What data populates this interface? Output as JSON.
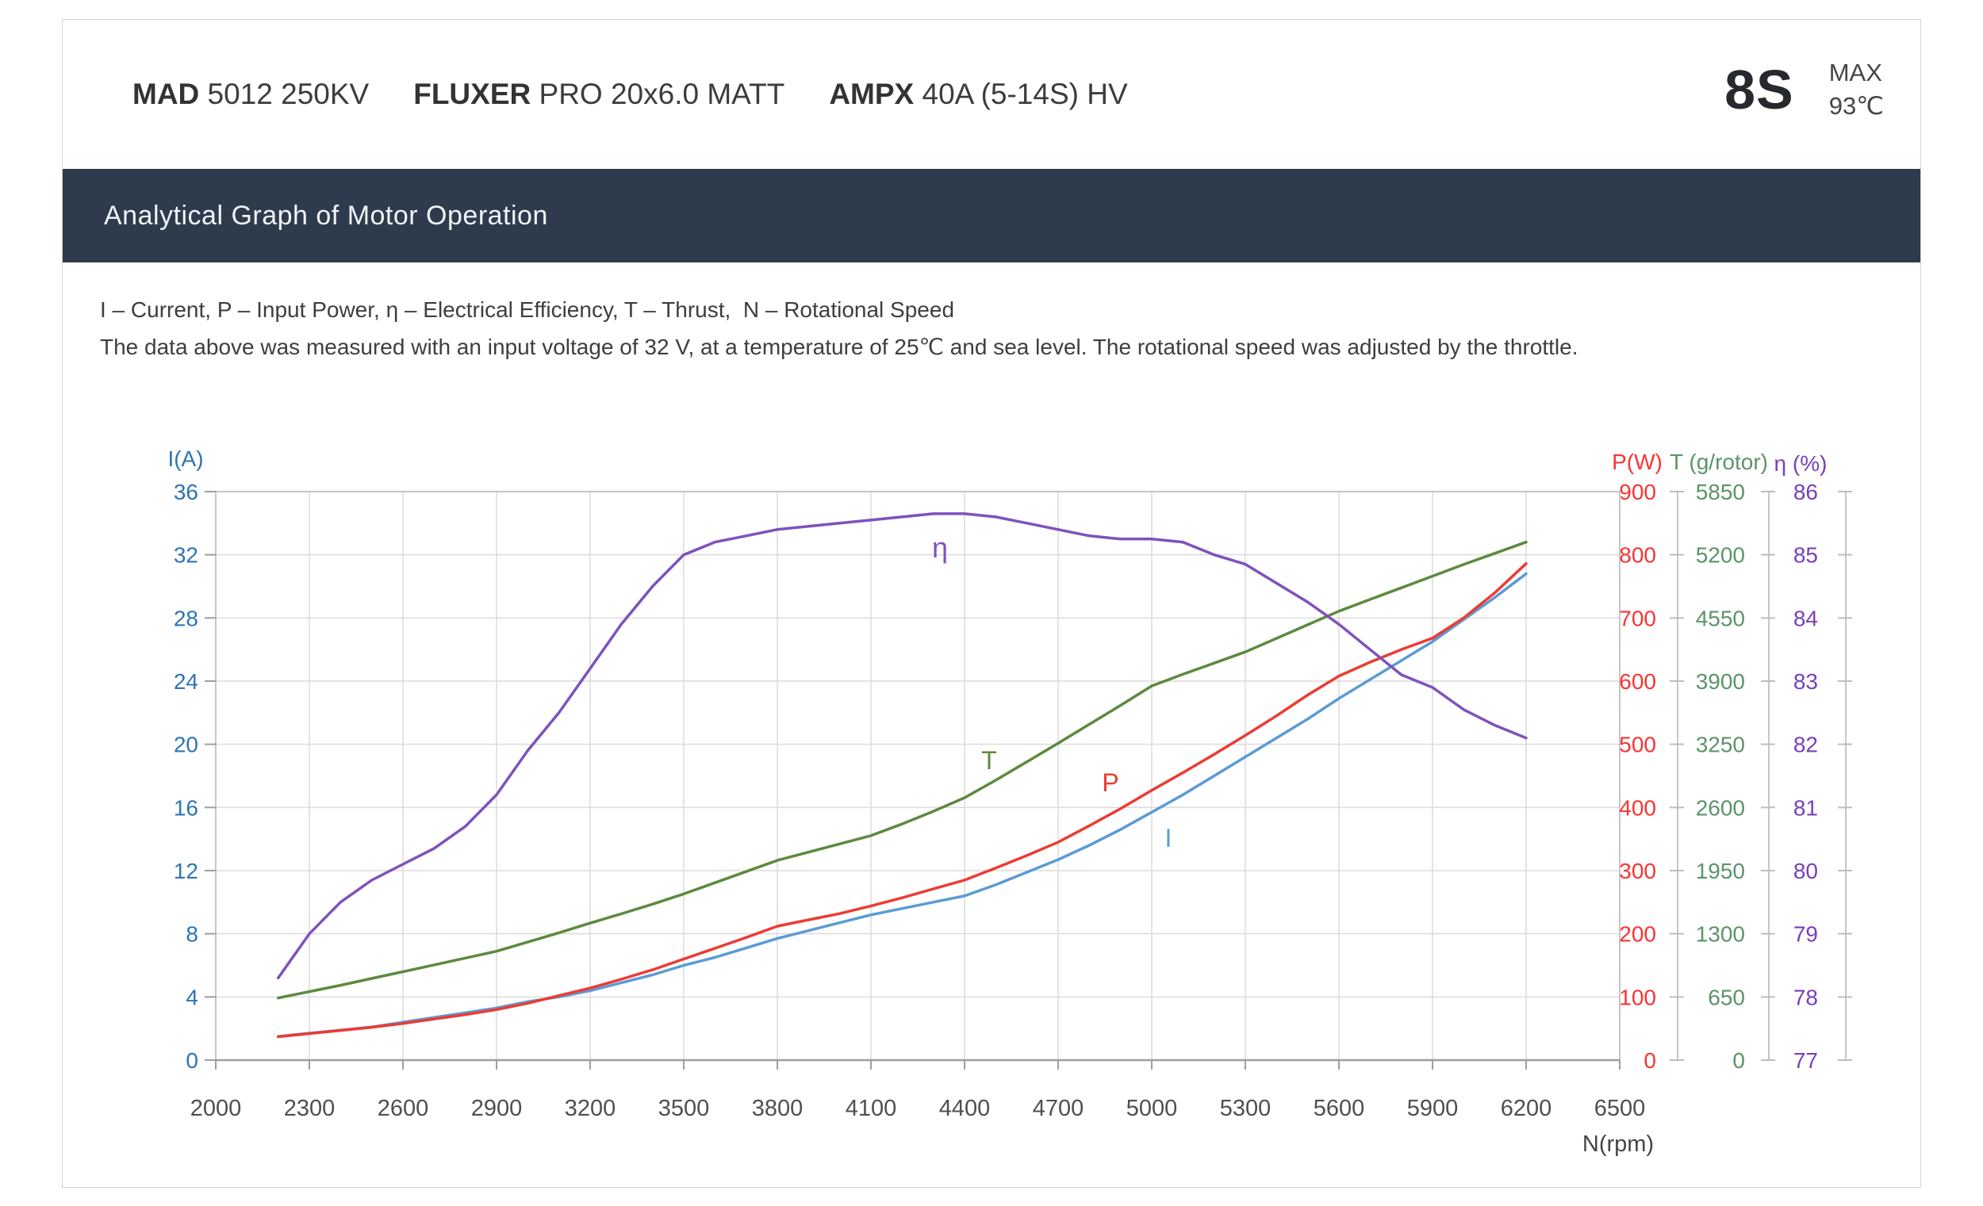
{
  "header": {
    "motor_bold": "MAD",
    "motor_rest": " 5012 250KV",
    "prop_bold": "FLUXER",
    "prop_rest": " PRO 20x6.0 MATT",
    "esc_bold": "AMPX",
    "esc_rest": " 40A (5-14S) HV",
    "battery": "8S",
    "max_label": "MAX",
    "max_temp": "93℃"
  },
  "banner": {
    "title": "Analytical Graph of Motor Operation"
  },
  "description": {
    "line1": "I – Current, P – Input Power, η – Electrical Efficiency, T – Thrust,  N – Rotational Speed",
    "line2": "The data above was measured with an input voltage of 32 V, at a temperature of 25℃ and sea level. The rotational speed was adjusted by the throttle."
  },
  "chart_data": {
    "type": "line",
    "title": "Analytical Graph of Motor Operation",
    "xlabel": "N(rpm)",
    "xlim": [
      2000,
      6500
    ],
    "x_ticks": [
      2000,
      2300,
      2600,
      2900,
      3200,
      3500,
      3800,
      4100,
      4400,
      4700,
      5000,
      5300,
      5600,
      5900,
      6200,
      6500
    ],
    "grid": true,
    "legend_position": "inline-labels",
    "x": [
      2200,
      2300,
      2400,
      2500,
      2600,
      2700,
      2800,
      2900,
      3000,
      3100,
      3200,
      3300,
      3400,
      3500,
      3600,
      3700,
      3800,
      3900,
      4000,
      4100,
      4200,
      4300,
      4400,
      4500,
      4600,
      4700,
      4800,
      4900,
      5000,
      5100,
      5200,
      5300,
      5400,
      5500,
      5600,
      5700,
      5800,
      5900,
      6000,
      6100,
      6200
    ],
    "axes": [
      {
        "id": "current",
        "title": "I(A)",
        "side": "left",
        "min": 0,
        "max": 36,
        "ticks": [
          0,
          4,
          8,
          12,
          16,
          20,
          24,
          28,
          32,
          36
        ],
        "label_color": "#2e74b5"
      },
      {
        "id": "power",
        "title": "P(W)",
        "side": "right",
        "min": 0,
        "max": 900,
        "ticks": [
          0,
          100,
          200,
          300,
          400,
          500,
          600,
          700,
          800,
          900
        ],
        "label_color": "#fb3333"
      },
      {
        "id": "thrust",
        "title": "T (g/rotor)",
        "side": "right",
        "min": 0,
        "max": 5850,
        "ticks": [
          0,
          650,
          1300,
          1950,
          2600,
          3250,
          3900,
          4550,
          5200,
          5850
        ],
        "label_color": "#5b9468"
      },
      {
        "id": "efficiency",
        "title": "η (%)",
        "side": "right",
        "min": 77,
        "max": 86,
        "ticks": [
          77,
          78,
          79,
          80,
          81,
          82,
          83,
          84,
          85,
          86
        ],
        "label_color": "#7840b8"
      }
    ],
    "series": [
      {
        "name": "I",
        "axis": "current",
        "color": "#5b9bd5",
        "values": [
          1.5,
          1.7,
          1.9,
          2.1,
          2.4,
          2.7,
          3.0,
          3.3,
          3.7,
          4.0,
          4.4,
          4.9,
          5.4,
          6.0,
          6.5,
          7.1,
          7.7,
          8.2,
          8.7,
          9.2,
          9.6,
          10.0,
          10.4,
          11.1,
          11.9,
          12.7,
          13.6,
          14.6,
          15.7,
          16.8,
          18.0,
          19.2,
          20.4,
          21.6,
          22.9,
          24.1,
          25.3,
          26.5,
          27.9,
          29.3,
          30.8
        ]
      },
      {
        "name": "P",
        "axis": "power",
        "color": "#ec3b33",
        "values": [
          37,
          42,
          47,
          52,
          58,
          65,
          72,
          80,
          90,
          102,
          114,
          128,
          143,
          160,
          177,
          194,
          212,
          222,
          232,
          244,
          257,
          271,
          285,
          304,
          324,
          345,
          371,
          398,
          427,
          455,
          484,
          514,
          545,
          578,
          608,
          630,
          650,
          668,
          700,
          740,
          786
        ]
      },
      {
        "name": "T",
        "axis": "thrust",
        "color": "#5c8a3e",
        "values": [
          640,
          705,
          770,
          840,
          910,
          980,
          1050,
          1120,
          1215,
          1310,
          1410,
          1505,
          1605,
          1710,
          1825,
          1940,
          2055,
          2140,
          2225,
          2310,
          2430,
          2560,
          2700,
          2880,
          3070,
          3260,
          3455,
          3650,
          3850,
          3970,
          4085,
          4200,
          4340,
          4480,
          4620,
          4740,
          4860,
          4980,
          5100,
          5215,
          5330
        ]
      },
      {
        "name": "η",
        "axis": "efficiency",
        "color": "#7e52bc",
        "values": [
          78.3,
          79.0,
          79.5,
          79.85,
          80.1,
          80.35,
          80.7,
          81.2,
          81.9,
          82.5,
          83.2,
          83.9,
          84.5,
          85.0,
          85.2,
          85.3,
          85.4,
          85.45,
          85.5,
          85.55,
          85.6,
          85.65,
          85.65,
          85.6,
          85.5,
          85.4,
          85.3,
          85.25,
          85.25,
          85.2,
          85.0,
          84.85,
          84.55,
          84.25,
          83.9,
          83.5,
          83.1,
          82.9,
          82.55,
          82.3,
          82.1
        ]
      }
    ]
  }
}
